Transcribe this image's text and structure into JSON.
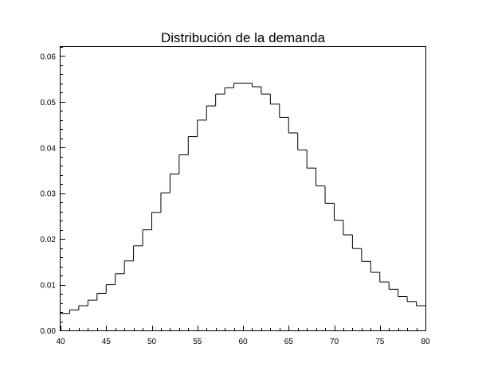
{
  "chart_data": {
    "type": "step",
    "title": "Distribución de la demanda",
    "xlabel": "",
    "ylabel": "",
    "xlim": [
      40,
      80
    ],
    "ylim": [
      0,
      0.062
    ],
    "x_ticks": [
      40,
      45,
      50,
      55,
      60,
      65,
      70,
      75,
      80
    ],
    "x_tick_labels": [
      "40",
      "45",
      "50",
      "55",
      "60",
      "65",
      "70",
      "75",
      "80"
    ],
    "y_ticks": [
      0,
      0.01,
      0.02,
      0.03,
      0.04,
      0.05,
      0.06
    ],
    "y_tick_labels": [
      "0.00",
      "0.01",
      "0.02",
      "0.03",
      "0.04",
      "0.05",
      "0.06"
    ],
    "grid": false,
    "line_color": "#000000",
    "series": [
      {
        "x": [
          40,
          41,
          42,
          43,
          44,
          45,
          46,
          47,
          48,
          49,
          50,
          51,
          52,
          53,
          54,
          55,
          56,
          57,
          58,
          59,
          60,
          61,
          62,
          63,
          64,
          65,
          66,
          67,
          68,
          69,
          70,
          71,
          72,
          73,
          74,
          75,
          76,
          77,
          78,
          79
        ],
        "values": [
          0.0037,
          0.0045,
          0.0054,
          0.0066,
          0.0081,
          0.01,
          0.0124,
          0.0152,
          0.0185,
          0.022,
          0.0258,
          0.0301,
          0.0342,
          0.0384,
          0.0424,
          0.046,
          0.0491,
          0.0517,
          0.0531,
          0.0541,
          0.0541,
          0.0533,
          0.0517,
          0.0495,
          0.0466,
          0.0432,
          0.0395,
          0.0355,
          0.0316,
          0.0278,
          0.0241,
          0.0209,
          0.0179,
          0.0151,
          0.0127,
          0.0106,
          0.009,
          0.0074,
          0.0063,
          0.0054
        ]
      }
    ]
  }
}
